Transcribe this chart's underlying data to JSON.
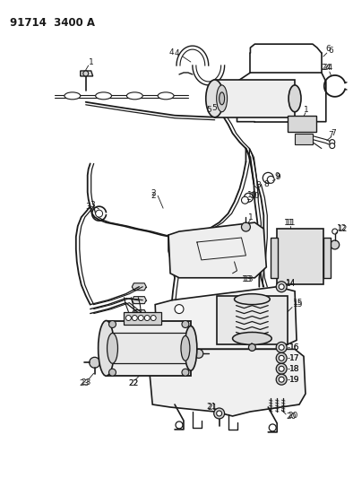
{
  "title": "91714 3400 A",
  "background_color": "#ffffff",
  "line_color": "#1a1a1a",
  "line_width": 1.0,
  "label_fontsize": 6.5,
  "title_fontsize": 8.5,
  "figsize": [
    3.94,
    5.33
  ],
  "dpi": 100
}
